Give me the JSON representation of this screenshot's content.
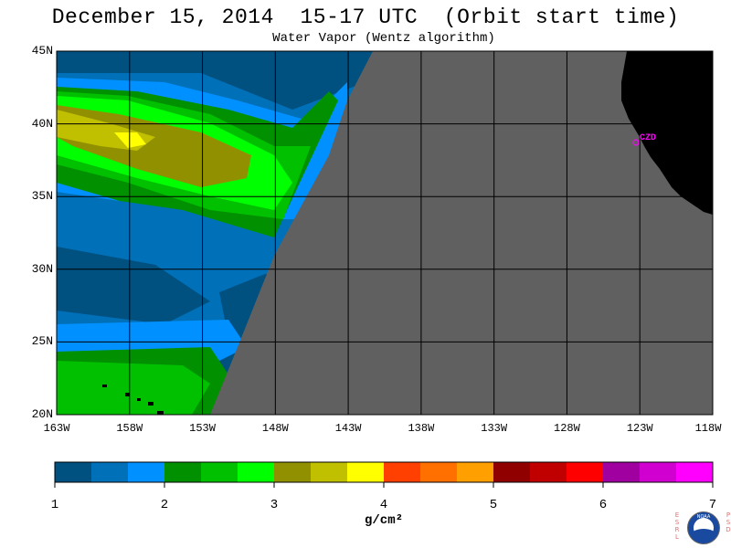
{
  "title": "December 15, 2014  15-17 UTC  (Orbit start time)",
  "subtitle": "Water Vapor (Wentz algorithm)",
  "lat_labels": [
    "45N",
    "40N",
    "35N",
    "30N",
    "25N",
    "20N"
  ],
  "lon_labels": [
    "163W",
    "158W",
    "153W",
    "148W",
    "143W",
    "138W",
    "133W",
    "128W",
    "123W",
    "118W"
  ],
  "station": "CZD",
  "colorbar": {
    "colors": [
      "#005080",
      "#0070b8",
      "#0090ff",
      "#009000",
      "#00c000",
      "#00ff00",
      "#909000",
      "#c0c000",
      "#ffff00",
      "#ff4000",
      "#ff7000",
      "#ffa000",
      "#900000",
      "#c00000",
      "#ff0000",
      "#a000a0",
      "#d000d0",
      "#ff00ff"
    ],
    "tick_labels": [
      "1",
      "2",
      "3",
      "4",
      "5",
      "6",
      "7"
    ],
    "units": "g/cm²"
  },
  "colors": {
    "no_data": "#606060",
    "land": "#000000",
    "station": "#ff00ff"
  },
  "logo": {
    "left_letters": "ESRL",
    "right_letters": "PSD",
    "center": "NOAA"
  }
}
